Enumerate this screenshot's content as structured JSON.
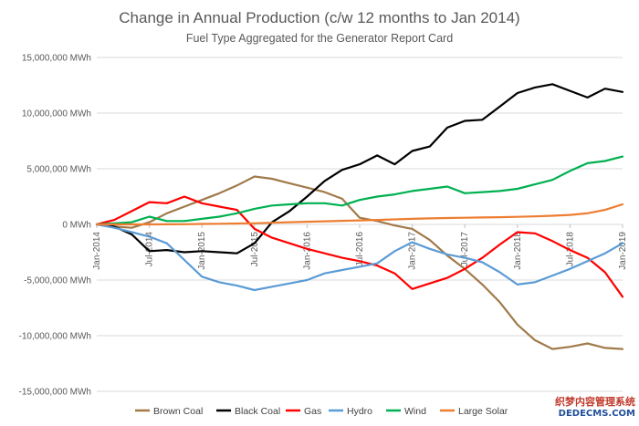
{
  "chart_data": {
    "type": "line",
    "title": "Change in Annual Production (c/w 12 months to Jan 2014)",
    "subtitle": "Fuel Type Aggregated for the Generator Report Card",
    "ylim": [
      -15000000,
      15000000
    ],
    "y_ticks": [
      15000000,
      10000000,
      5000000,
      0,
      -5000000,
      -10000000,
      -15000000
    ],
    "y_tick_labels": [
      "15,000,000 MWh",
      "10,000,000 MWh",
      "5,000,000 MWh",
      "0 MWh",
      "-5,000,000 MWh",
      "-10,000,000 MWh",
      "-15,000,000 MWh"
    ],
    "x_tick_labels": [
      "Jan-2014",
      "Jul-2014",
      "Jan-2015",
      "Jul-2015",
      "Jan-2016",
      "Jul-2016",
      "Jan-2017",
      "Jul-2017",
      "Jan-2018",
      "Jul-2018",
      "Jan-2019"
    ],
    "x_tick_months": [
      0,
      6,
      12,
      18,
      24,
      30,
      36,
      42,
      48,
      54,
      60
    ],
    "legend_position": "bottom",
    "series": [
      {
        "name": "Brown Coal",
        "color": "#a07a4a",
        "x_months": [
          0,
          2,
          4,
          6,
          8,
          10,
          12,
          14,
          16,
          18,
          20,
          22,
          24,
          26,
          28,
          30,
          32,
          34,
          36,
          38,
          40,
          42,
          44,
          46,
          48,
          50,
          52,
          54,
          56,
          58,
          60
        ],
        "values": [
          0,
          -200000,
          -300000,
          200000,
          1000000,
          1600000,
          2200000,
          2800000,
          3500000,
          4300000,
          4100000,
          3700000,
          3300000,
          2900000,
          2300000,
          600000,
          300000,
          -100000,
          -400000,
          -1400000,
          -2800000,
          -4000000,
          -5400000,
          -7000000,
          -9000000,
          -10400000,
          -11200000,
          -11000000,
          -10700000,
          -11100000,
          -11200000
        ]
      },
      {
        "name": "Black Coal",
        "color": "#000000",
        "x_months": [
          0,
          2,
          4,
          6,
          8,
          10,
          12,
          14,
          16,
          18,
          20,
          22,
          24,
          26,
          28,
          30,
          32,
          34,
          36,
          38,
          40,
          42,
          44,
          46,
          48,
          50,
          52,
          54,
          56,
          58,
          60
        ],
        "values": [
          0,
          -200000,
          -900000,
          -2400000,
          -2300000,
          -2500000,
          -2400000,
          -2500000,
          -2600000,
          -1700000,
          200000,
          1200000,
          2500000,
          3900000,
          4900000,
          5400000,
          6200000,
          5400000,
          6600000,
          7000000,
          8700000,
          9300000,
          9400000,
          10600000,
          11800000,
          12300000,
          12600000,
          12000000,
          11400000,
          12200000,
          11900000
        ]
      },
      {
        "name": "Gas",
        "color": "#ff0000",
        "x_months": [
          0,
          2,
          4,
          6,
          8,
          10,
          12,
          14,
          16,
          18,
          20,
          22,
          24,
          26,
          28,
          30,
          32,
          34,
          36,
          38,
          40,
          42,
          44,
          46,
          48,
          50,
          52,
          54,
          56,
          58,
          60
        ],
        "values": [
          0,
          400000,
          1200000,
          2000000,
          1900000,
          2500000,
          1900000,
          1600000,
          1300000,
          -400000,
          -1200000,
          -1700000,
          -2200000,
          -2600000,
          -3000000,
          -3300000,
          -3700000,
          -4400000,
          -5800000,
          -5300000,
          -4800000,
          -4000000,
          -3000000,
          -1800000,
          -700000,
          -800000,
          -1500000,
          -2300000,
          -3000000,
          -4300000,
          -6500000
        ]
      },
      {
        "name": "Hydro",
        "color": "#5b9bd5",
        "x_months": [
          0,
          2,
          4,
          6,
          8,
          10,
          12,
          14,
          16,
          18,
          20,
          22,
          24,
          26,
          28,
          30,
          32,
          34,
          36,
          38,
          40,
          42,
          44,
          46,
          48,
          50,
          52,
          54,
          56,
          58,
          60
        ],
        "values": [
          0,
          -300000,
          -700000,
          -1100000,
          -1700000,
          -3200000,
          -4700000,
          -5200000,
          -5500000,
          -5900000,
          -5600000,
          -5300000,
          -5000000,
          -4400000,
          -4100000,
          -3800000,
          -3500000,
          -2400000,
          -1600000,
          -2200000,
          -2700000,
          -3000000,
          -3400000,
          -4300000,
          -5400000,
          -5200000,
          -4600000,
          -4000000,
          -3300000,
          -2600000,
          -1700000
        ]
      },
      {
        "name": "Wind",
        "color": "#00b050",
        "x_months": [
          0,
          2,
          4,
          6,
          8,
          10,
          12,
          14,
          16,
          18,
          20,
          22,
          24,
          26,
          28,
          30,
          32,
          34,
          36,
          38,
          40,
          42,
          44,
          46,
          48,
          50,
          52,
          54,
          56,
          58,
          60
        ],
        "values": [
          0,
          100000,
          200000,
          700000,
          300000,
          300000,
          500000,
          700000,
          1000000,
          1400000,
          1700000,
          1800000,
          1900000,
          1900000,
          1700000,
          2200000,
          2500000,
          2700000,
          3000000,
          3200000,
          3400000,
          2800000,
          2900000,
          3000000,
          3200000,
          3600000,
          4000000,
          4800000,
          5500000,
          5700000,
          6100000
        ]
      },
      {
        "name": "Large Solar",
        "color": "#ed7d31",
        "x_months": [
          0,
          2,
          4,
          6,
          8,
          10,
          12,
          14,
          16,
          18,
          20,
          22,
          24,
          26,
          28,
          30,
          32,
          34,
          36,
          38,
          40,
          42,
          44,
          46,
          48,
          50,
          52,
          54,
          56,
          58,
          60
        ],
        "values": [
          0,
          0,
          0,
          0,
          10000,
          20000,
          40000,
          60000,
          80000,
          100000,
          150000,
          200000,
          240000,
          280000,
          320000,
          360000,
          400000,
          450000,
          500000,
          540000,
          570000,
          600000,
          620000,
          650000,
          680000,
          720000,
          780000,
          850000,
          1000000,
          1300000,
          1800000
        ]
      }
    ]
  },
  "watermark": {
    "line1": "织梦内容管理系统",
    "line2": "DEDECMS.COM"
  }
}
